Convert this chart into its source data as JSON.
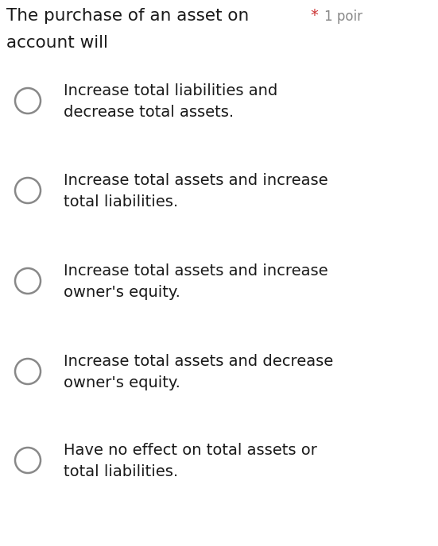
{
  "background_color": "#ffffff",
  "question_text_line1": "The purchase of an asset on",
  "question_text_line2": "account will",
  "asterisk_color": "#cc3333",
  "question_color": "#1a1a1a",
  "points_color": "#888888",
  "options": [
    "Increase total liabilities and\ndecrease total assets.",
    "Increase total assets and increase\ntotal liabilities.",
    "Increase total assets and increase\nowner's equity.",
    "Increase total assets and decrease\nowner's equity.",
    "Have no effect on total assets or\ntotal liabilities."
  ],
  "option_color": "#1a1a1a",
  "circle_edge_color": "#888888",
  "circle_face_color": "#ffffff",
  "font_size_question": 15.5,
  "font_size_options": 14,
  "font_size_points": 12
}
